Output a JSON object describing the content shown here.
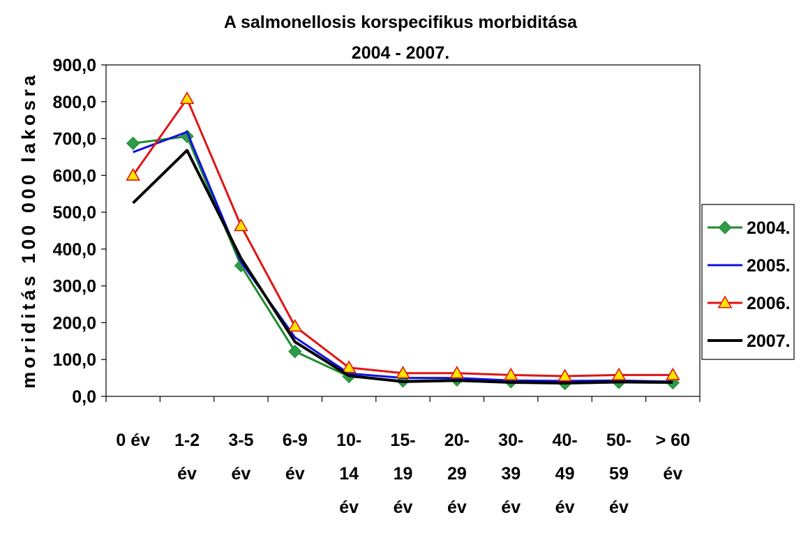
{
  "chart_data": {
    "type": "line",
    "title": "A salmonellosis korspecifikus morbiditása",
    "subtitle": "2004 - 2007.",
    "xlabel": "",
    "ylabel": "moriditás 100 000 lakosra",
    "ylim": [
      0,
      900
    ],
    "yticks": [
      0,
      100,
      200,
      300,
      400,
      500,
      600,
      700,
      800,
      900
    ],
    "ytick_labels": [
      "0,0",
      "100,0",
      "200,0",
      "300,0",
      "400,0",
      "500,0",
      "600,0",
      "700,0",
      "800,0",
      "900,0"
    ],
    "grid": false,
    "legend_position": "right",
    "categories": [
      [
        "0 év"
      ],
      [
        "1-2",
        "év"
      ],
      [
        "3-5",
        "év"
      ],
      [
        "6-9",
        "év"
      ],
      [
        "10-",
        "14",
        "év"
      ],
      [
        "15-",
        "19",
        "év"
      ],
      [
        "20-",
        "29",
        "év"
      ],
      [
        "30-",
        "39",
        "év"
      ],
      [
        "40-",
        "49",
        "év"
      ],
      [
        "50-",
        "59",
        "év"
      ],
      [
        "> 60",
        "év"
      ]
    ],
    "series": [
      {
        "name": "2004.",
        "color": "#1f8a2e",
        "marker": "diamond",
        "values": [
          687,
          706,
          355,
          122,
          54,
          42,
          45,
          40,
          35,
          38,
          37
        ]
      },
      {
        "name": "2005.",
        "color": "#1010e0",
        "marker": "none",
        "values": [
          663,
          718,
          365,
          160,
          62,
          50,
          50,
          43,
          42,
          43,
          40
        ]
      },
      {
        "name": "2006.",
        "color": "#e01414",
        "marker": "triangle",
        "values": [
          600,
          808,
          463,
          190,
          78,
          63,
          63,
          58,
          55,
          58,
          58
        ]
      },
      {
        "name": "2007.",
        "color": "#000000",
        "marker": "none",
        "values": [
          525,
          668,
          375,
          148,
          56,
          40,
          43,
          38,
          36,
          39,
          38
        ]
      }
    ]
  }
}
